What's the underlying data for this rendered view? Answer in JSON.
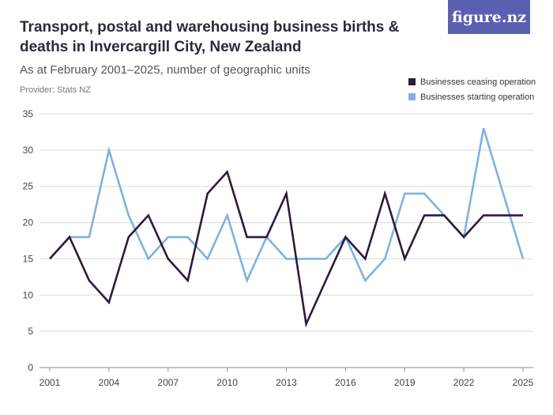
{
  "header": {
    "title": "Transport, postal and warehousing business births & deaths in Invercargill City, New Zealand",
    "subtitle": "As at February 2001–2025, number of geographic units",
    "provider": "Provider: Stats NZ",
    "logo": "figure.nz"
  },
  "colors": {
    "ceasing": "#2e1a3e",
    "starting": "#7fb2e0",
    "grid": "#d9d9d9",
    "axis": "#888888"
  },
  "chart_data": {
    "type": "line",
    "title": "Transport, postal and warehousing business births & deaths in Invercargill City, New Zealand",
    "subtitle": "As at February 2001–2025, number of geographic units",
    "x": [
      2001,
      2002,
      2003,
      2004,
      2005,
      2006,
      2007,
      2008,
      2009,
      2010,
      2011,
      2012,
      2013,
      2014,
      2015,
      2016,
      2017,
      2018,
      2019,
      2020,
      2021,
      2022,
      2023,
      2024,
      2025
    ],
    "x_ticks": [
      2001,
      2004,
      2007,
      2010,
      2013,
      2016,
      2019,
      2022,
      2025
    ],
    "y_ticks": [
      0,
      5,
      10,
      15,
      20,
      25,
      30,
      35
    ],
    "ylim": [
      0,
      35
    ],
    "grid": true,
    "legend_position": "top-right",
    "series": [
      {
        "name": "Businesses ceasing operation",
        "color": "#2e1a3e",
        "values": [
          15,
          18,
          12,
          9,
          18,
          21,
          15,
          12,
          24,
          27,
          18,
          18,
          24,
          6,
          12,
          18,
          15,
          24,
          15,
          21,
          21,
          18,
          21,
          21,
          21
        ]
      },
      {
        "name": "Businesses starting operation",
        "color": "#7fb2e0",
        "values": [
          15,
          18,
          18,
          30,
          21,
          15,
          18,
          18,
          15,
          21,
          12,
          18,
          15,
          15,
          15,
          18,
          12,
          15,
          24,
          24,
          21,
          18,
          33,
          24,
          15
        ]
      }
    ]
  }
}
